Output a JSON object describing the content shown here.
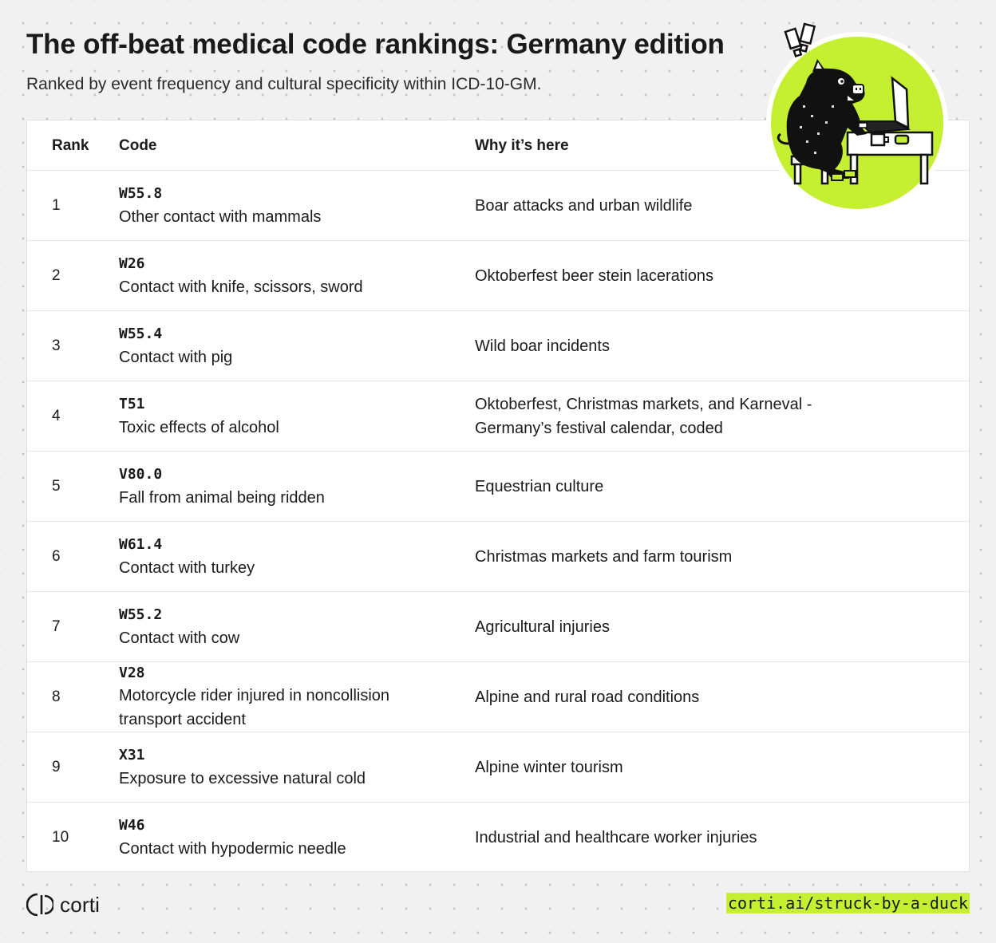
{
  "title": "The off-beat medical code rankings: Germany edition",
  "subtitle": "Ranked by event frequency and cultural specificity within ICD-10-GM.",
  "table": {
    "headers": {
      "rank": "Rank",
      "code": "Code",
      "why": "Why it’s here"
    },
    "rows": [
      {
        "rank": "1",
        "code": "W55.8",
        "description": "Other contact with mammals",
        "why": "Boar attacks and urban wildlife"
      },
      {
        "rank": "2",
        "code": "W26",
        "description": "Contact with knife, scissors, sword",
        "why": "Oktoberfest beer stein lacerations"
      },
      {
        "rank": "3",
        "code": "W55.4",
        "description": "Contact with pig",
        "why": "Wild boar incidents"
      },
      {
        "rank": "4",
        "code": "T51",
        "description": "Toxic effects of alcohol",
        "why": "Oktoberfest, Christmas markets, and Karneval - Germany’s festival calendar, coded"
      },
      {
        "rank": "5",
        "code": "V80.0",
        "description": "Fall from animal being ridden",
        "why": "Equestrian culture"
      },
      {
        "rank": "6",
        "code": "W61.4",
        "description": "Contact with turkey",
        "why": "Christmas markets and farm tourism"
      },
      {
        "rank": "7",
        "code": "W55.2",
        "description": "Contact with cow",
        "why": "Agricultural injuries"
      },
      {
        "rank": "8",
        "code": "V28",
        "description": "Motorcycle rider injured in noncollision transport accident",
        "why": "Alpine and rural road conditions"
      },
      {
        "rank": "9",
        "code": "X31",
        "description": "Exposure to excessive natural cold",
        "why": "Alpine winter tourism"
      },
      {
        "rank": "10",
        "code": "W46",
        "description": "Contact with hypodermic needle",
        "why": "Industrial and healthcare worker injuries"
      }
    ]
  },
  "footer": {
    "logo_text": "corti",
    "link": "corti.ai/struck-by-a-duck"
  },
  "colors": {
    "accent": "#c5f031",
    "background": "#f1f1f1",
    "text": "#1b1b1b"
  },
  "icons": {
    "logo": "corti-logo-icon",
    "mascot": "boar-at-laptop-illustration"
  }
}
